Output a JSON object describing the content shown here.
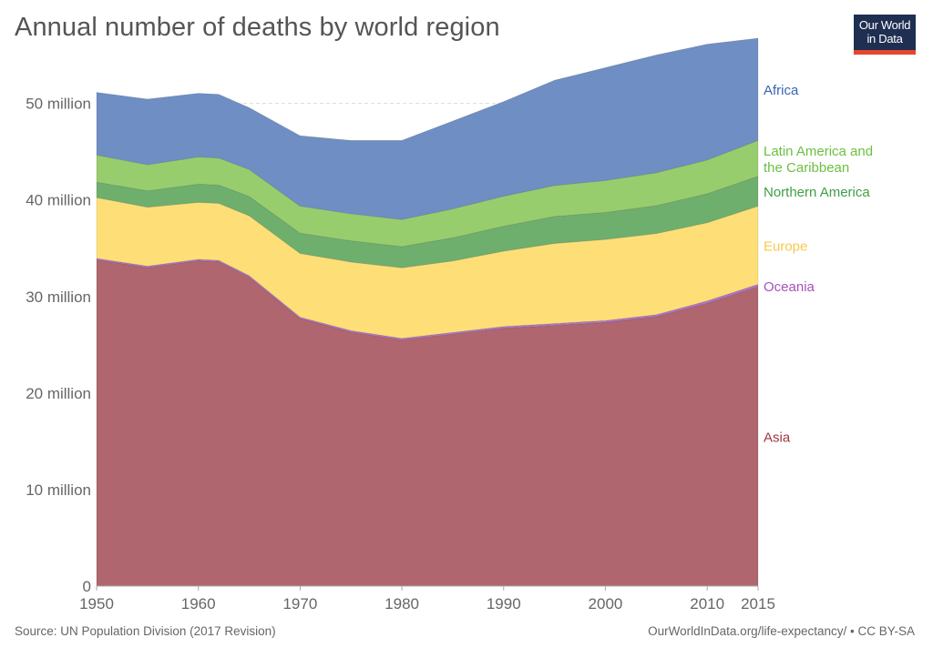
{
  "title": "Annual number of deaths by world region",
  "logo": {
    "line1": "Our World",
    "line2": "in Data",
    "bg": "#1f2f52",
    "accent": "#e5472a"
  },
  "footer": {
    "source": "Source: UN Population Division (2017 Revision)",
    "license": "OurWorldInData.org/life-expectancy/ • CC BY-SA"
  },
  "chart_data": {
    "type": "area",
    "stacked": true,
    "title": "Annual number of deaths by world region",
    "xlim": [
      1950,
      2015
    ],
    "ylim": [
      0,
      56000000
    ],
    "x_ticks": [
      1950,
      1960,
      1970,
      1980,
      1990,
      2000,
      2010,
      2015
    ],
    "y_ticks": [
      {
        "value": 0,
        "label": "0"
      },
      {
        "value": 10000000,
        "label": "10 million"
      },
      {
        "value": 20000000,
        "label": "20 million"
      },
      {
        "value": 30000000,
        "label": "30 million"
      },
      {
        "value": 40000000,
        "label": "40 million"
      },
      {
        "value": 50000000,
        "label": "50 million"
      }
    ],
    "gridlines": "horizontal dashed",
    "legend": "inline labels at right",
    "x": [
      1950,
      1955,
      1960,
      1962,
      1965,
      1970,
      1975,
      1980,
      1985,
      1990,
      1995,
      2000,
      2005,
      2010,
      2015
    ],
    "series": [
      {
        "name": "Asia",
        "color": "#b0666e",
        "label_color": "#a1343f",
        "values": [
          33800000,
          33000000,
          33700000,
          33600000,
          32000000,
          27700000,
          26300000,
          25500000,
          26100000,
          26700000,
          27000000,
          27300000,
          27900000,
          29300000,
          31000000
        ]
      },
      {
        "name": "Oceania",
        "color": "#b274c6",
        "label_color": "#a652ba",
        "values": [
          150000,
          150000,
          150000,
          150000,
          160000,
          160000,
          170000,
          170000,
          180000,
          190000,
          200000,
          210000,
          220000,
          240000,
          260000
        ]
      },
      {
        "name": "Europe",
        "color": "#fedf77",
        "label_color": "#f5c94d",
        "values": [
          6300000,
          6100000,
          5900000,
          5900000,
          6200000,
          6600000,
          7100000,
          7300000,
          7400000,
          7800000,
          8300000,
          8400000,
          8400000,
          8100000,
          8100000
        ]
      },
      {
        "name": "Northern America",
        "color": "#6eaf6e",
        "label_color": "#3f9f45",
        "values": [
          1600000,
          1700000,
          1900000,
          1900000,
          2000000,
          2100000,
          2200000,
          2200000,
          2400000,
          2600000,
          2800000,
          2800000,
          2900000,
          3000000,
          3100000
        ]
      },
      {
        "name": "Latin America and the Caribbean",
        "color": "#98cd6e",
        "label_color": "#6cbf40",
        "values": [
          2800000,
          2700000,
          2800000,
          2800000,
          2800000,
          2800000,
          2800000,
          2800000,
          3000000,
          3100000,
          3200000,
          3300000,
          3400000,
          3500000,
          3700000
        ]
      },
      {
        "name": "Africa",
        "color": "#6f8ec3",
        "label_color": "#3864b4",
        "values": [
          6500000,
          6800000,
          6600000,
          6600000,
          6400000,
          7300000,
          7600000,
          8200000,
          9100000,
          9800000,
          10900000,
          11700000,
          12200000,
          12000000,
          10600000
        ]
      }
    ]
  }
}
